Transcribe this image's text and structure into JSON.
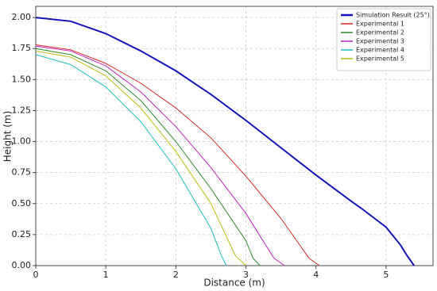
{
  "chart_data": {
    "type": "line",
    "x_label": "Distance (m)",
    "y_label": "Height (m)",
    "xlim": [
      0,
      5.67
    ],
    "ylim": [
      0,
      2.09
    ],
    "xticks": [
      0,
      1,
      2,
      3,
      4,
      5
    ],
    "yticks": [
      {
        "value": 0,
        "label": "0.00"
      },
      {
        "value": 0.25,
        "label": "0.25"
      },
      {
        "value": 0.5,
        "label": "0.50"
      },
      {
        "value": 0.75,
        "label": "0.75"
      },
      {
        "value": 1,
        "label": "1.00"
      },
      {
        "value": 1.25,
        "label": "1.25"
      },
      {
        "value": 1.5,
        "label": "1.50"
      },
      {
        "value": 1.75,
        "label": "1.75"
      },
      {
        "value": 2,
        "label": "2.00"
      }
    ],
    "grid": true,
    "legend": "upper right",
    "series": [
      {
        "name": "Simulation Result (25°)",
        "color": "#1414b8",
        "width": 2,
        "x": [
          0,
          0.5,
          1,
          1.5,
          2,
          2.5,
          3,
          3.5,
          4,
          4.5,
          4.65,
          5,
          5.2,
          5.3,
          5.4
        ],
        "values": [
          2.0,
          1.97,
          1.87,
          1.73,
          1.57,
          1.38,
          1.17,
          0.95,
          0.73,
          0.52,
          0.46,
          0.31,
          0.17,
          0.08,
          0.0
        ]
      },
      {
        "name": "Experimental 1",
        "color": "#d62728",
        "width": 1,
        "x": [
          0,
          0.5,
          1,
          1.5,
          2,
          2.5,
          3,
          3.5,
          3.9,
          4.05
        ],
        "values": [
          1.78,
          1.74,
          1.63,
          1.47,
          1.27,
          1.03,
          0.72,
          0.38,
          0.06,
          0.0
        ]
      },
      {
        "name": "Experimental 2",
        "color": "#2a8a2a",
        "width": 1,
        "x": [
          0,
          0.5,
          1,
          1.5,
          2,
          2.5,
          3,
          3.1,
          3.2
        ],
        "values": [
          1.75,
          1.7,
          1.57,
          1.33,
          1.0,
          0.62,
          0.2,
          0.06,
          0.0
        ]
      },
      {
        "name": "Experimental 3",
        "color": "#c020c0",
        "width": 1,
        "x": [
          0,
          0.5,
          1,
          1.5,
          2,
          2.5,
          3,
          3.4,
          3.55
        ],
        "values": [
          1.77,
          1.73,
          1.61,
          1.4,
          1.12,
          0.79,
          0.42,
          0.06,
          0.0
        ]
      },
      {
        "name": "Experimental 4",
        "color": "#20bcbc",
        "width": 1,
        "x": [
          0,
          0.5,
          1,
          1.5,
          2,
          2.5,
          2.65,
          2.72
        ],
        "values": [
          1.7,
          1.62,
          1.44,
          1.16,
          0.78,
          0.3,
          0.08,
          0.0
        ]
      },
      {
        "name": "Experimental 5",
        "color": "#bcbc10",
        "width": 1,
        "x": [
          0,
          0.5,
          1,
          1.5,
          2,
          2.5,
          2.85,
          3.0
        ],
        "values": [
          1.73,
          1.68,
          1.53,
          1.27,
          0.92,
          0.5,
          0.08,
          0.0
        ]
      }
    ]
  }
}
